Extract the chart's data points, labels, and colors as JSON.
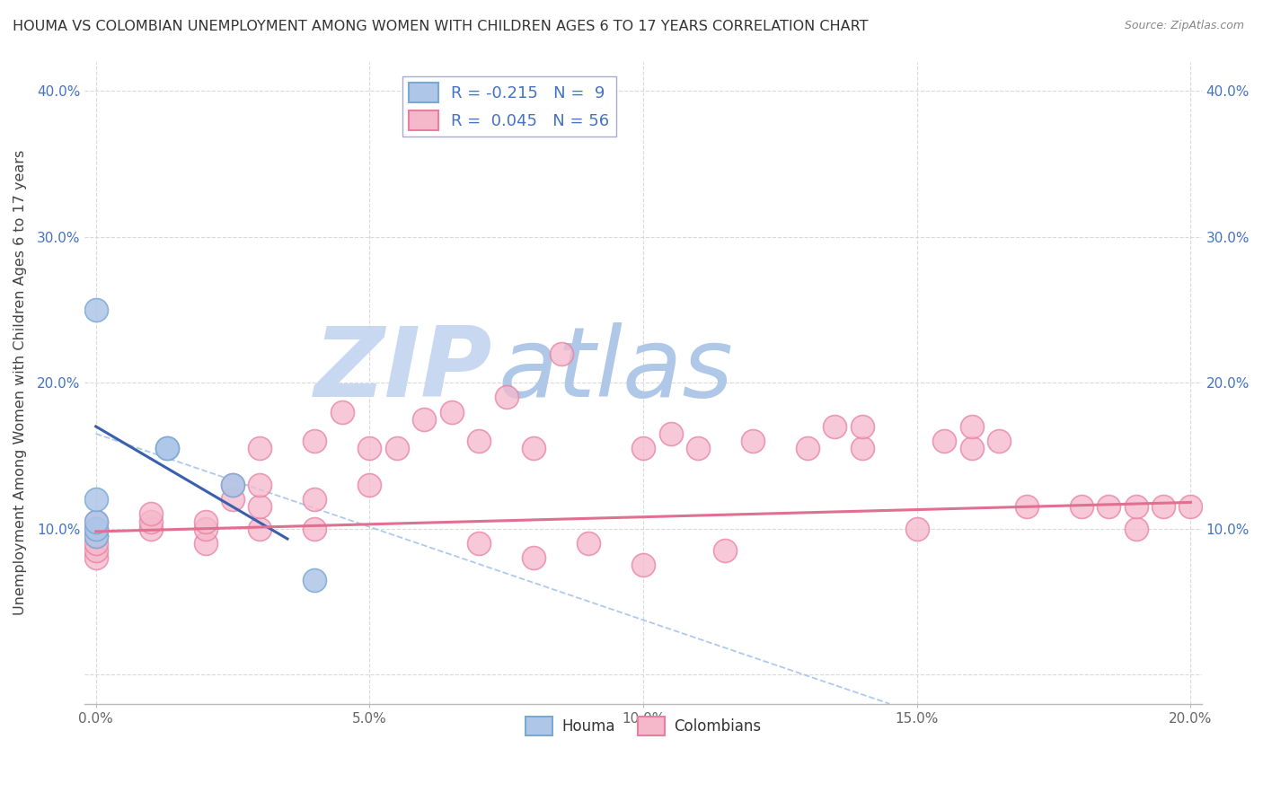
{
  "title": "HOUMA VS COLOMBIAN UNEMPLOYMENT AMONG WOMEN WITH CHILDREN AGES 6 TO 17 YEARS CORRELATION CHART",
  "source": "Source: ZipAtlas.com",
  "ylabel": "Unemployment Among Women with Children Ages 6 to 17 years",
  "xlim": [
    -0.002,
    0.202
  ],
  "ylim": [
    -0.02,
    0.42
  ],
  "xticks": [
    0.0,
    0.05,
    0.1,
    0.15,
    0.2
  ],
  "xticklabels": [
    "0.0%",
    "5.0%",
    "10.0%",
    "15.0%",
    "20.0%"
  ],
  "yticks_left": [
    0.0,
    0.1,
    0.2,
    0.3,
    0.4
  ],
  "yticklabels_left": [
    "",
    "10.0%",
    "20.0%",
    "30.0%",
    "40.0%"
  ],
  "yticks_right": [
    0.0,
    0.1,
    0.2,
    0.3,
    0.4
  ],
  "yticklabels_right": [
    "",
    "10.0%",
    "20.0%",
    "30.0%",
    "40.0%"
  ],
  "houma_color": "#aec6e8",
  "colombian_color": "#f5b8cb",
  "houma_edge_color": "#7aaad4",
  "colombian_edge_color": "#e87fa0",
  "trend_houma_color": "#3a5fad",
  "trend_colombian_color": "#e07090",
  "trend_dashed_color": "#a0c0e8",
  "background_color": "#ffffff",
  "grid_color": "#d0d0d0",
  "legend_text_color": "#4472c4",
  "watermark_zip_color": "#c8d8f0",
  "watermark_atlas_color": "#b0c8e8",
  "houma_x": [
    0.0,
    0.0,
    0.0,
    0.0,
    0.0,
    0.013,
    0.013,
    0.025,
    0.04
  ],
  "houma_y": [
    0.095,
    0.1,
    0.105,
    0.12,
    0.25,
    0.155,
    0.155,
    0.13,
    0.065
  ],
  "colombian_x": [
    0.0,
    0.0,
    0.0,
    0.0,
    0.0,
    0.0,
    0.01,
    0.01,
    0.01,
    0.02,
    0.02,
    0.02,
    0.025,
    0.025,
    0.03,
    0.03,
    0.03,
    0.03,
    0.04,
    0.04,
    0.04,
    0.045,
    0.05,
    0.05,
    0.055,
    0.06,
    0.065,
    0.07,
    0.07,
    0.075,
    0.08,
    0.08,
    0.085,
    0.09,
    0.1,
    0.1,
    0.105,
    0.11,
    0.115,
    0.12,
    0.13,
    0.135,
    0.14,
    0.14,
    0.15,
    0.155,
    0.16,
    0.16,
    0.165,
    0.17,
    0.18,
    0.185,
    0.19,
    0.19,
    0.195,
    0.2
  ],
  "colombian_y": [
    0.08,
    0.085,
    0.09,
    0.095,
    0.1,
    0.105,
    0.1,
    0.105,
    0.11,
    0.09,
    0.1,
    0.105,
    0.12,
    0.13,
    0.1,
    0.115,
    0.13,
    0.155,
    0.1,
    0.12,
    0.16,
    0.18,
    0.13,
    0.155,
    0.155,
    0.175,
    0.18,
    0.09,
    0.16,
    0.19,
    0.08,
    0.155,
    0.22,
    0.09,
    0.075,
    0.155,
    0.165,
    0.155,
    0.085,
    0.16,
    0.155,
    0.17,
    0.155,
    0.17,
    0.1,
    0.16,
    0.155,
    0.17,
    0.16,
    0.115,
    0.115,
    0.115,
    0.1,
    0.115,
    0.115,
    0.115
  ],
  "blue_line_x0": 0.0,
  "blue_line_y0": 0.17,
  "blue_line_x1": 0.035,
  "blue_line_y1": 0.093,
  "pink_line_x0": 0.0,
  "pink_line_y0": 0.098,
  "pink_line_x1": 0.2,
  "pink_line_y1": 0.118,
  "dashed_line_x0": 0.0,
  "dashed_line_y0": 0.165,
  "dashed_line_x1": 0.145,
  "dashed_line_y1": -0.02
}
